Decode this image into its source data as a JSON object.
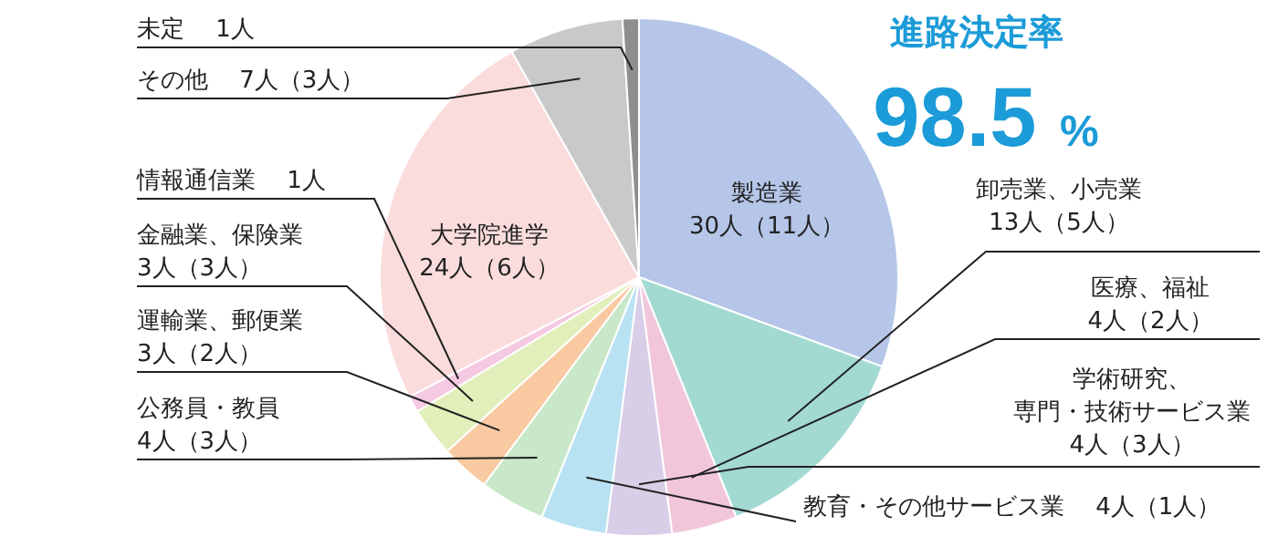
{
  "chart_data": {
    "type": "pie",
    "title": "進路決定率",
    "subtitle": "98.5 %",
    "categories": [
      "製造業",
      "卸売業、小売業",
      "医療、福祉",
      "学術研究、専門・技術サービス業",
      "教育・その他サービス業",
      "公務員・教員",
      "運輸業、郵便業",
      "金融業、保険業",
      "情報通信業",
      "大学院進学",
      "その他",
      "未定"
    ],
    "values": [
      30,
      13,
      4,
      4,
      4,
      4,
      3,
      3,
      1,
      24,
      7,
      1
    ],
    "value_labels": [
      "30人（11人）",
      "13人（5人）",
      "4人（2人）",
      "4人（3人）",
      "4人（1人）",
      "4人（3人）",
      "3人（2人）",
      "3人（3人）",
      "1人",
      "24人（6人）",
      "7人（3人）",
      "1人"
    ],
    "colors": [
      "#b5c6e8",
      "#a2dad2",
      "#f2c6da",
      "#d8cee8",
      "#b8e2f2",
      "#c9e7c9",
      "#f9c9a2",
      "#e2efba",
      "#f5c9e2",
      "#fbdcdc",
      "#c9c9c9",
      "#8e8e8e"
    ]
  }
}
